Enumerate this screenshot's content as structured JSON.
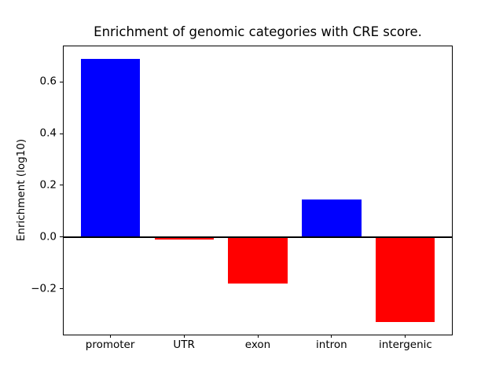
{
  "figure": {
    "background": "#ffffff"
  },
  "chart_data": {
    "type": "bar",
    "title": "Enrichment of genomic categories with CRE score.",
    "xlabel": "",
    "ylabel": "Enrichment (log10)",
    "categories": [
      "promoter",
      "UTR",
      "exon",
      "intron",
      "intergenic"
    ],
    "values": [
      0.69,
      -0.01,
      -0.18,
      0.145,
      -0.33
    ],
    "bar_colors": [
      "#0000ff",
      "#ff0000",
      "#ff0000",
      "#0000ff",
      "#ff0000"
    ],
    "color_rule": "positive bars blue, negative bars red",
    "bar_width": 0.8,
    "yticks": [
      0.6,
      0.4,
      0.2,
      0.0,
      -0.2
    ],
    "ytick_labels": [
      "0.6",
      "0.4",
      "0.2",
      "0.0",
      "−0.2"
    ],
    "ylim": [
      -0.381,
      0.741
    ],
    "xlim": [
      -0.64,
      4.64
    ],
    "zero_line": true,
    "grid": false,
    "legend": false,
    "colors": {
      "positive": "#0000ff",
      "negative": "#ff0000",
      "axis": "#000000",
      "background": "#ffffff"
    }
  }
}
